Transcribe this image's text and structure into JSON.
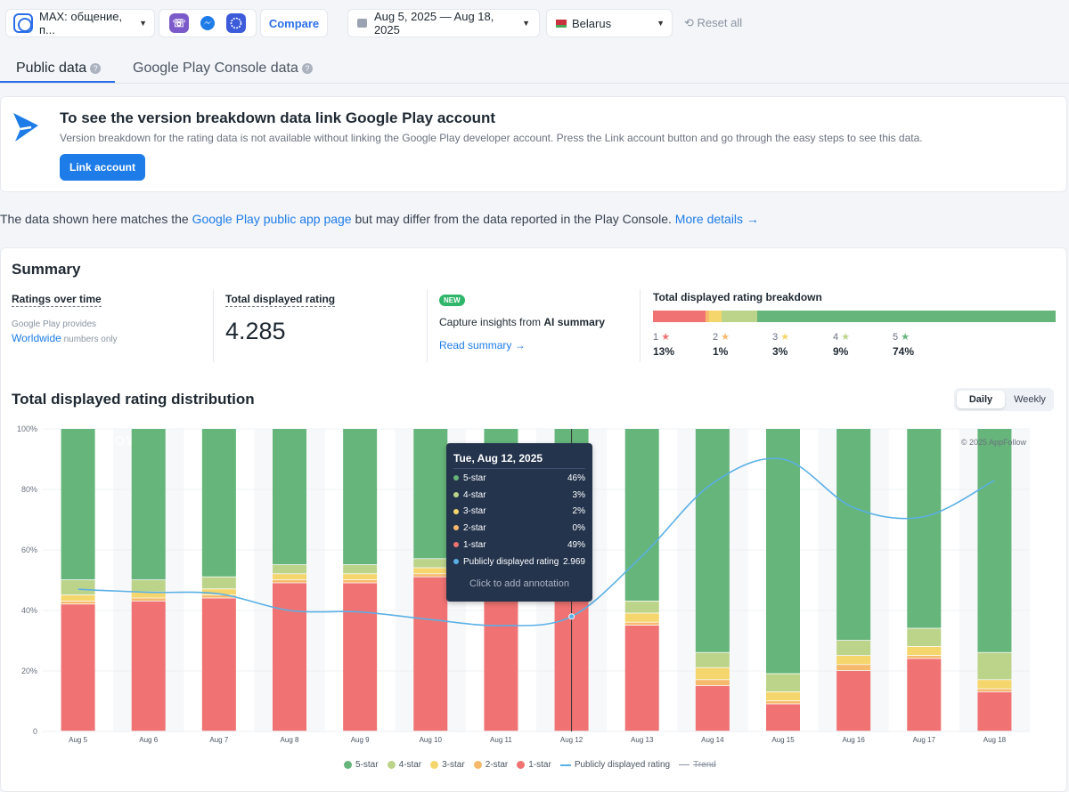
{
  "topbar": {
    "app_name": "MAX: общение, п...",
    "compare_label": "Compare",
    "date_range": "Aug 5, 2025 — Aug 18, 2025",
    "country": "Belarus",
    "reset_label": "Reset all",
    "competitor_icons": [
      "viber-icon",
      "messenger-icon",
      "signal-icon"
    ],
    "accent_color": "#2b6fe8"
  },
  "tabs": {
    "public": "Public data",
    "console": "Google Play Console data"
  },
  "banner": {
    "title": "To see the version breakdown data link Google Play account",
    "text": "Version breakdown for the rating data is not available without linking the Google Play developer account. Press the Link account button and go through the easy steps to see this data.",
    "button": "Link account"
  },
  "note": {
    "prefix": "The data shown here matches the ",
    "link1": "Google Play public app page",
    "middle": " but may differ from the data reported in the Play Console. ",
    "link2": "More details →"
  },
  "summary": {
    "title": "Summary",
    "ratings_over_time": "Ratings over time",
    "provides": "Google Play provides",
    "worldwide": "Worldwide",
    "numbers_only": " numbers only",
    "total_rating_label": "Total displayed rating",
    "total_rating_value": "4.285",
    "new_badge": "NEW",
    "capture_prefix": "Capture insights from ",
    "capture_bold": "AI summary",
    "read_summary": "Read summary →",
    "breakdown_label": "Total displayed rating breakdown",
    "breakdown": [
      {
        "star": "1",
        "pct": "13%",
        "value": 13,
        "color": "#f07272"
      },
      {
        "star": "2",
        "pct": "1%",
        "value": 1,
        "color": "#f6b96b"
      },
      {
        "star": "3",
        "pct": "3%",
        "value": 3,
        "color": "#f5d66c"
      },
      {
        "star": "4",
        "pct": "9%",
        "value": 9,
        "color": "#bcd48a"
      },
      {
        "star": "5",
        "pct": "74%",
        "value": 74,
        "color": "#66b57a"
      }
    ]
  },
  "distribution": {
    "title": "Total displayed rating distribution",
    "daily": "Daily",
    "weekly": "Weekly",
    "watermark": "APPFOLLOW",
    "copyright": "© 2025 AppFollow"
  },
  "tooltip": {
    "title": "Tue, Aug 12, 2025",
    "rows": [
      {
        "label": "5-star",
        "value": "46%",
        "color": "#66b57a"
      },
      {
        "label": "4-star",
        "value": "3%",
        "color": "#bcd48a"
      },
      {
        "label": "3-star",
        "value": "2%",
        "color": "#f5d66c"
      },
      {
        "label": "2-star",
        "value": "0%",
        "color": "#f6b96b"
      },
      {
        "label": "1-star",
        "value": "49%",
        "color": "#f07272"
      },
      {
        "label": "Publicly displayed rating",
        "value": "2.969",
        "color": "#5ab0e6"
      }
    ],
    "footer": "Click to add annotation"
  },
  "legend": {
    "five": "5-star",
    "four": "4-star",
    "three": "3-star",
    "two": "2-star",
    "one": "1-star",
    "line": "Publicly displayed rating",
    "trend": "Trend"
  },
  "chart_data": {
    "type": "bar",
    "stacked": true,
    "categories": [
      "Aug 5",
      "Aug 6",
      "Aug 7",
      "Aug 8",
      "Aug 9",
      "Aug 10",
      "Aug 11",
      "Aug 12",
      "Aug 13",
      "Aug 14",
      "Aug 15",
      "Aug 16",
      "Aug 17",
      "Aug 18"
    ],
    "yticks": [
      "0",
      "20%",
      "40%",
      "60%",
      "80%",
      "100%"
    ],
    "ylim": [
      0,
      100
    ],
    "series": [
      {
        "name": "1-star",
        "color": "#f07272",
        "values": [
          42,
          43,
          44,
          49,
          49,
          51,
          51,
          49,
          35,
          15,
          9,
          20,
          24,
          13
        ]
      },
      {
        "name": "2-star",
        "color": "#f6b96b",
        "values": [
          1,
          1,
          1,
          1,
          1,
          1,
          1,
          0,
          1,
          2,
          1,
          2,
          1,
          1
        ]
      },
      {
        "name": "3-star",
        "color": "#f5d66c",
        "values": [
          2,
          2,
          2,
          2,
          2,
          2,
          2,
          2,
          3,
          4,
          3,
          3,
          3,
          3
        ]
      },
      {
        "name": "4-star",
        "color": "#bcd48a",
        "values": [
          5,
          4,
          4,
          3,
          3,
          3,
          3,
          3,
          4,
          5,
          6,
          5,
          6,
          9
        ]
      },
      {
        "name": "5-star",
        "color": "#66b57a",
        "values": [
          50,
          50,
          49,
          45,
          45,
          43,
          43,
          46,
          57,
          74,
          81,
          70,
          66,
          74
        ]
      }
    ],
    "line": {
      "name": "Publicly displayed rating",
      "color": "#5ab0e6",
      "values": [
        47,
        46,
        45.5,
        40,
        39.5,
        37,
        35,
        38,
        58,
        82,
        90,
        74,
        71,
        83
      ]
    },
    "highlight_index": 7,
    "legend_position": "bottom",
    "grid": true
  }
}
